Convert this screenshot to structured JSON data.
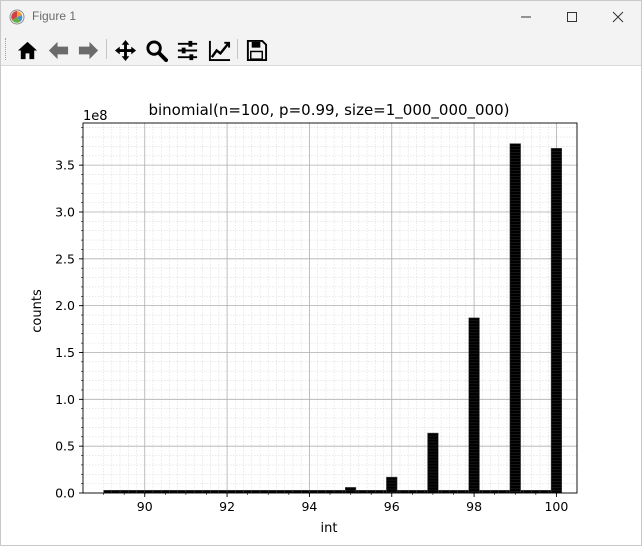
{
  "window": {
    "title": "Figure 1",
    "icon": "matplotlib-logo-icon",
    "controls": [
      "minimize-icon",
      "maximize-icon",
      "close-icon"
    ]
  },
  "toolbar": {
    "buttons": [
      {
        "name": "home",
        "icon": "home-icon"
      },
      {
        "name": "back",
        "icon": "arrow-left-icon"
      },
      {
        "name": "forward",
        "icon": "arrow-right-icon"
      },
      {
        "name": "pan",
        "icon": "move-arrows-icon"
      },
      {
        "name": "zoom",
        "icon": "magnifier-icon"
      },
      {
        "name": "configure-subplots",
        "icon": "sliders-icon"
      },
      {
        "name": "edit-axis",
        "icon": "line-chart-icon"
      },
      {
        "name": "save",
        "icon": "floppy-disk-icon"
      }
    ]
  },
  "chart_data": {
    "type": "bar",
    "title": "binomial(n=100, p=0.99, size=1_000_000_000)",
    "xlabel": "int",
    "ylabel": "counts",
    "y_offset_label": "1e8",
    "xlim": [
      88.5,
      100.5
    ],
    "ylim": [
      0,
      3.95
    ],
    "y_scale": 100000000,
    "xticks": [
      90,
      92,
      94,
      96,
      98,
      100
    ],
    "yticks": [
      0.0,
      0.5,
      1.0,
      1.5,
      2.0,
      2.5,
      3.0,
      3.5
    ],
    "ytick_labels": [
      "0.0",
      "0.5",
      "1.0",
      "1.5",
      "2.0",
      "2.5",
      "3.0",
      "3.5"
    ],
    "grid": true,
    "minor_grid": true,
    "bar_color": "#000000",
    "bar_edge_color": "#555555",
    "bars": [
      {
        "x": 95,
        "value": 0.06
      },
      {
        "x": 96,
        "value": 0.17
      },
      {
        "x": 97,
        "value": 0.64
      },
      {
        "x": 98,
        "value": 1.87
      },
      {
        "x": 99,
        "value": 3.73
      },
      {
        "x": 100,
        "value": 3.68
      }
    ],
    "baseline": {
      "x_start": 89.0,
      "x_end": 100.0,
      "value": 0.03
    }
  }
}
